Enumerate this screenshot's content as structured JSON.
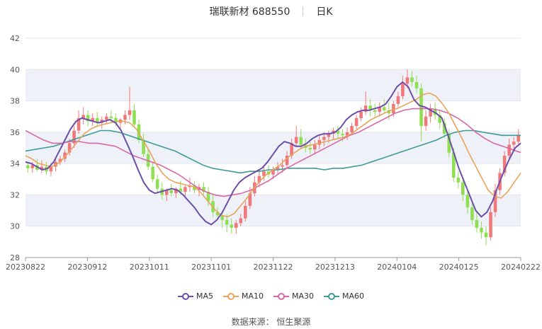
{
  "header": {
    "name": "瑞联新材 688550",
    "period": "日K"
  },
  "footer": {
    "source": "数据来源： 恒生聚源"
  },
  "colors": {
    "up": "#f0787a",
    "down": "#8fdf53",
    "ma5": "#6b4fa8",
    "ma10": "#e8a45a",
    "ma30": "#d966a8",
    "ma60": "#3f9b96",
    "band": "#eef1f7",
    "grid": "#e4e7ee"
  },
  "chart_data": {
    "type": "candlestick",
    "x_ticks": [
      "20230822",
      "20230912",
      "20231011",
      "20231101",
      "20231122",
      "20231213",
      "20240104",
      "20240125",
      "20240222"
    ],
    "ylim": [
      28,
      42
    ],
    "y_ticks": [
      28,
      30,
      32,
      34,
      36,
      38,
      40,
      42
    ],
    "legend": [
      "MA5",
      "MA10",
      "MA30",
      "MA60"
    ],
    "ohlc": [
      [
        33.9,
        34.0,
        33.4,
        33.7
      ],
      [
        33.7,
        34.1,
        33.4,
        33.9
      ],
      [
        33.9,
        34.3,
        33.5,
        33.6
      ],
      [
        33.6,
        34.2,
        33.4,
        33.8
      ],
      [
        33.8,
        34.1,
        33.3,
        33.5
      ],
      [
        33.5,
        34.0,
        33.2,
        33.8
      ],
      [
        33.8,
        34.3,
        33.5,
        34.1
      ],
      [
        34.1,
        34.5,
        33.9,
        34.3
      ],
      [
        34.3,
        34.9,
        34.1,
        34.7
      ],
      [
        34.7,
        35.6,
        34.5,
        35.3
      ],
      [
        35.3,
        36.4,
        35.0,
        36.1
      ],
      [
        36.1,
        37.4,
        35.9,
        36.9
      ],
      [
        36.9,
        37.6,
        36.5,
        37.1
      ],
      [
        37.1,
        37.4,
        36.4,
        36.7
      ],
      [
        36.7,
        37.2,
        36.4,
        36.9
      ],
      [
        36.9,
        37.3,
        36.3,
        36.6
      ],
      [
        36.6,
        37.0,
        36.2,
        36.8
      ],
      [
        36.8,
        37.2,
        36.5,
        37.0
      ],
      [
        37.0,
        37.4,
        36.6,
        36.9
      ],
      [
        36.9,
        37.2,
        36.4,
        36.6
      ],
      [
        36.6,
        36.9,
        36.2,
        36.8
      ],
      [
        36.8,
        37.4,
        36.5,
        37.1
      ],
      [
        37.1,
        38.9,
        36.8,
        37.4
      ],
      [
        37.4,
        37.8,
        36.3,
        36.5
      ],
      [
        36.5,
        36.8,
        35.3,
        35.5
      ],
      [
        35.5,
        35.9,
        34.4,
        34.6
      ],
      [
        34.6,
        35.0,
        33.6,
        33.8
      ],
      [
        33.8,
        34.1,
        32.8,
        33.0
      ],
      [
        33.0,
        33.3,
        32.1,
        32.4
      ],
      [
        32.4,
        32.8,
        31.7,
        32.0
      ],
      [
        32.0,
        32.4,
        31.6,
        32.3
      ],
      [
        32.3,
        32.7,
        31.9,
        32.1
      ],
      [
        32.1,
        32.5,
        31.8,
        32.4
      ],
      [
        32.4,
        32.9,
        32.0,
        32.2
      ],
      [
        32.2,
        32.6,
        31.9,
        32.5
      ],
      [
        32.5,
        33.1,
        32.2,
        32.6
      ],
      [
        32.6,
        32.9,
        32.1,
        32.3
      ],
      [
        32.3,
        32.7,
        31.9,
        32.5
      ],
      [
        32.5,
        32.8,
        32.0,
        32.2
      ],
      [
        32.2,
        32.5,
        31.3,
        31.6
      ],
      [
        31.6,
        32.0,
        30.6,
        30.9
      ],
      [
        30.9,
        31.2,
        30.4,
        30.7
      ],
      [
        30.7,
        31.0,
        29.9,
        30.4
      ],
      [
        30.4,
        30.8,
        29.6,
        30.1
      ],
      [
        30.1,
        30.5,
        29.5,
        29.9
      ],
      [
        29.9,
        30.4,
        29.5,
        30.2
      ],
      [
        30.2,
        30.8,
        30.0,
        30.5
      ],
      [
        30.5,
        31.6,
        30.3,
        31.3
      ],
      [
        31.3,
        32.5,
        31.1,
        32.1
      ],
      [
        32.1,
        33.2,
        31.9,
        32.8
      ],
      [
        32.8,
        33.6,
        32.5,
        33.2
      ],
      [
        33.2,
        33.8,
        32.9,
        33.5
      ],
      [
        33.5,
        33.9,
        33.1,
        33.3
      ],
      [
        33.3,
        33.8,
        33.0,
        33.6
      ],
      [
        33.6,
        34.1,
        33.3,
        33.8
      ],
      [
        33.8,
        34.3,
        33.4,
        33.9
      ],
      [
        33.9,
        34.8,
        33.7,
        34.5
      ],
      [
        34.5,
        35.6,
        34.3,
        35.3
      ],
      [
        35.3,
        36.4,
        35.1,
        35.7
      ],
      [
        35.7,
        36.2,
        35.0,
        35.2
      ],
      [
        35.2,
        35.6,
        34.7,
        35.0
      ],
      [
        35.0,
        35.4,
        34.6,
        34.9
      ],
      [
        34.9,
        35.5,
        34.6,
        35.2
      ],
      [
        35.2,
        35.8,
        34.9,
        35.5
      ],
      [
        35.5,
        36.0,
        35.1,
        35.7
      ],
      [
        35.7,
        36.1,
        35.3,
        35.9
      ],
      [
        35.9,
        36.3,
        35.5,
        36.1
      ],
      [
        36.1,
        36.4,
        35.6,
        35.9
      ],
      [
        35.9,
        36.2,
        35.4,
        35.8
      ],
      [
        35.8,
        36.3,
        35.5,
        36.0
      ],
      [
        36.0,
        36.6,
        35.8,
        36.4
      ],
      [
        36.4,
        37.1,
        36.2,
        36.9
      ],
      [
        36.9,
        37.6,
        36.7,
        37.3
      ],
      [
        37.3,
        38.6,
        37.1,
        37.7
      ],
      [
        37.7,
        38.1,
        37.0,
        37.4
      ],
      [
        37.4,
        37.8,
        36.9,
        37.3
      ],
      [
        37.3,
        37.9,
        37.0,
        37.6
      ],
      [
        37.6,
        38.1,
        37.2,
        37.4
      ],
      [
        37.4,
        37.9,
        36.8,
        37.2
      ],
      [
        37.2,
        38.0,
        37.0,
        37.8
      ],
      [
        37.8,
        38.6,
        37.6,
        38.3
      ],
      [
        38.3,
        39.6,
        38.1,
        39.1
      ],
      [
        39.1,
        40.0,
        38.8,
        39.5
      ],
      [
        39.5,
        39.9,
        38.9,
        39.2
      ],
      [
        39.2,
        39.6,
        38.5,
        38.8
      ],
      [
        38.8,
        39.1,
        35.4,
        36.4
      ],
      [
        36.4,
        37.4,
        36.1,
        37.0
      ],
      [
        37.0,
        37.8,
        36.6,
        37.5
      ],
      [
        37.5,
        37.9,
        36.8,
        37.1
      ],
      [
        37.1,
        37.4,
        36.2,
        36.6
      ],
      [
        36.6,
        36.9,
        35.6,
        35.9
      ],
      [
        35.9,
        36.2,
        34.4,
        34.7
      ],
      [
        34.7,
        35.0,
        32.8,
        33.1
      ],
      [
        33.1,
        33.5,
        32.4,
        32.8
      ],
      [
        32.8,
        33.1,
        31.6,
        32.0
      ],
      [
        32.0,
        32.3,
        30.8,
        31.2
      ],
      [
        31.2,
        31.6,
        30.1,
        30.4
      ],
      [
        30.4,
        30.9,
        29.6,
        29.9
      ],
      [
        29.9,
        30.3,
        29.2,
        29.6
      ],
      [
        29.6,
        30.0,
        28.8,
        29.3
      ],
      [
        29.3,
        31.2,
        29.1,
        30.9
      ],
      [
        30.9,
        32.7,
        30.6,
        32.3
      ],
      [
        32.3,
        33.7,
        32.0,
        33.4
      ],
      [
        33.4,
        34.8,
        33.2,
        34.5
      ],
      [
        34.5,
        35.6,
        34.3,
        35.2
      ],
      [
        35.2,
        35.7,
        34.8,
        35.4
      ],
      [
        35.4,
        36.2,
        35.1,
        35.8
      ]
    ],
    "ma5": [
      34.1,
      34.0,
      33.8,
      33.6,
      33.7,
      34.1,
      34.8,
      35.5,
      36.2,
      36.7,
      36.9,
      36.8,
      36.7,
      36.6,
      36.7,
      36.8,
      36.6,
      36.1,
      35.3,
      34.5,
      33.6,
      32.8,
      32.3,
      32.1,
      32.2,
      32.3,
      32.4,
      32.3,
      32.0,
      31.6,
      31.2,
      30.7,
      30.3,
      30.1,
      30.4,
      30.9,
      31.6,
      32.3,
      32.8,
      33.1,
      33.3,
      33.5,
      33.7,
      34.1,
      34.6,
      35.1,
      35.4,
      35.3,
      35.1,
      35.1,
      35.3,
      35.6,
      35.8,
      35.9,
      35.9,
      36.0,
      36.3,
      36.8,
      37.1,
      37.3,
      37.4,
      37.4,
      37.5,
      37.6,
      37.8,
      38.3,
      38.9,
      39.2,
      38.9,
      38.1,
      37.7,
      37.6,
      37.4,
      37.2,
      36.9,
      35.9,
      34.8,
      33.7,
      32.8,
      31.9,
      31.0,
      30.6,
      30.9,
      31.6,
      32.6,
      33.5,
      34.3,
      35.0,
      35.3
    ],
    "ma10": [
      34.5,
      34.3,
      34.0,
      33.9,
      33.8,
      34.0,
      34.4,
      34.9,
      35.4,
      35.9,
      36.2,
      36.4,
      36.5,
      36.6,
      36.7,
      36.7,
      36.6,
      36.2,
      35.5,
      34.8,
      34.0,
      33.4,
      33.0,
      32.8,
      32.7,
      32.6,
      32.5,
      32.1,
      31.6,
      31.1,
      30.7,
      30.6,
      30.8,
      31.3,
      31.8,
      32.4,
      32.9,
      33.3,
      33.6,
      33.9,
      34.3,
      34.6,
      34.9,
      35.1,
      35.2,
      35.3,
      35.4,
      35.5,
      35.6,
      35.7,
      35.9,
      36.2,
      36.5,
      36.8,
      37.0,
      37.2,
      37.4,
      37.5,
      37.7,
      37.9,
      38.1,
      38.4,
      38.5,
      38.3,
      37.8,
      37.2,
      36.4,
      35.6,
      34.7,
      33.9,
      33.1,
      32.3,
      31.9,
      31.8,
      32.2,
      32.8,
      33.4
    ],
    "ma30": [
      36.1,
      35.8,
      35.5,
      35.3,
      35.3,
      35.4,
      35.4,
      35.3,
      35.3,
      35.2,
      35.1,
      34.8,
      34.5,
      34.3,
      34.1,
      33.9,
      33.6,
      33.3,
      32.9,
      32.5,
      32.2,
      32.0,
      31.9,
      32.0,
      32.1,
      32.3,
      32.6,
      32.9,
      33.3,
      33.7,
      34.0,
      34.3,
      34.6,
      34.9,
      35.2,
      35.5,
      35.8,
      36.0,
      36.3,
      36.6,
      36.9,
      37.2,
      37.4,
      37.5,
      37.5,
      37.5,
      37.4,
      37.2,
      36.9,
      36.5,
      36.0,
      35.6,
      35.3,
      35.1,
      34.9,
      34.7
    ],
    "ma60": [
      34.8,
      34.9,
      35.0,
      35.1,
      35.3,
      35.5,
      35.7,
      35.9,
      36.1,
      36.1,
      36.0,
      35.8,
      35.6,
      35.4,
      35.2,
      35.0,
      34.8,
      34.5,
      34.2,
      33.9,
      33.7,
      33.6,
      33.5,
      33.4,
      33.5,
      33.5,
      33.6,
      33.6,
      33.7,
      33.7,
      33.7,
      33.7,
      33.6,
      33.7,
      33.7,
      33.8,
      33.9,
      34.1,
      34.3,
      34.5,
      34.7,
      34.9,
      35.1,
      35.3,
      35.5,
      35.8,
      36.0,
      36.1,
      36.1,
      36.0,
      35.9,
      35.8,
      35.8,
      35.8
    ]
  }
}
